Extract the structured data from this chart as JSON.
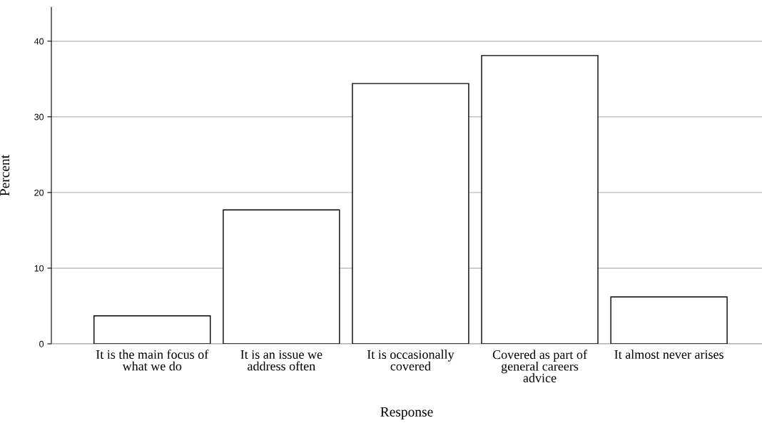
{
  "chart_data": {
    "type": "bar",
    "xlabel": "Response",
    "ylabel": "Percent",
    "categories": [
      "It is the main focus of what we do",
      "It is an issue we address often",
      "It is occasionally covered",
      "Covered as part of general careers advice",
      "It almost never arises"
    ],
    "values": [
      3.7,
      17.7,
      34.4,
      38.1,
      6.2
    ],
    "color": "#ffffff",
    "ylim": [
      0,
      44.5
    ],
    "yticks": [
      0,
      10,
      20,
      30,
      40
    ],
    "grid": "y"
  }
}
